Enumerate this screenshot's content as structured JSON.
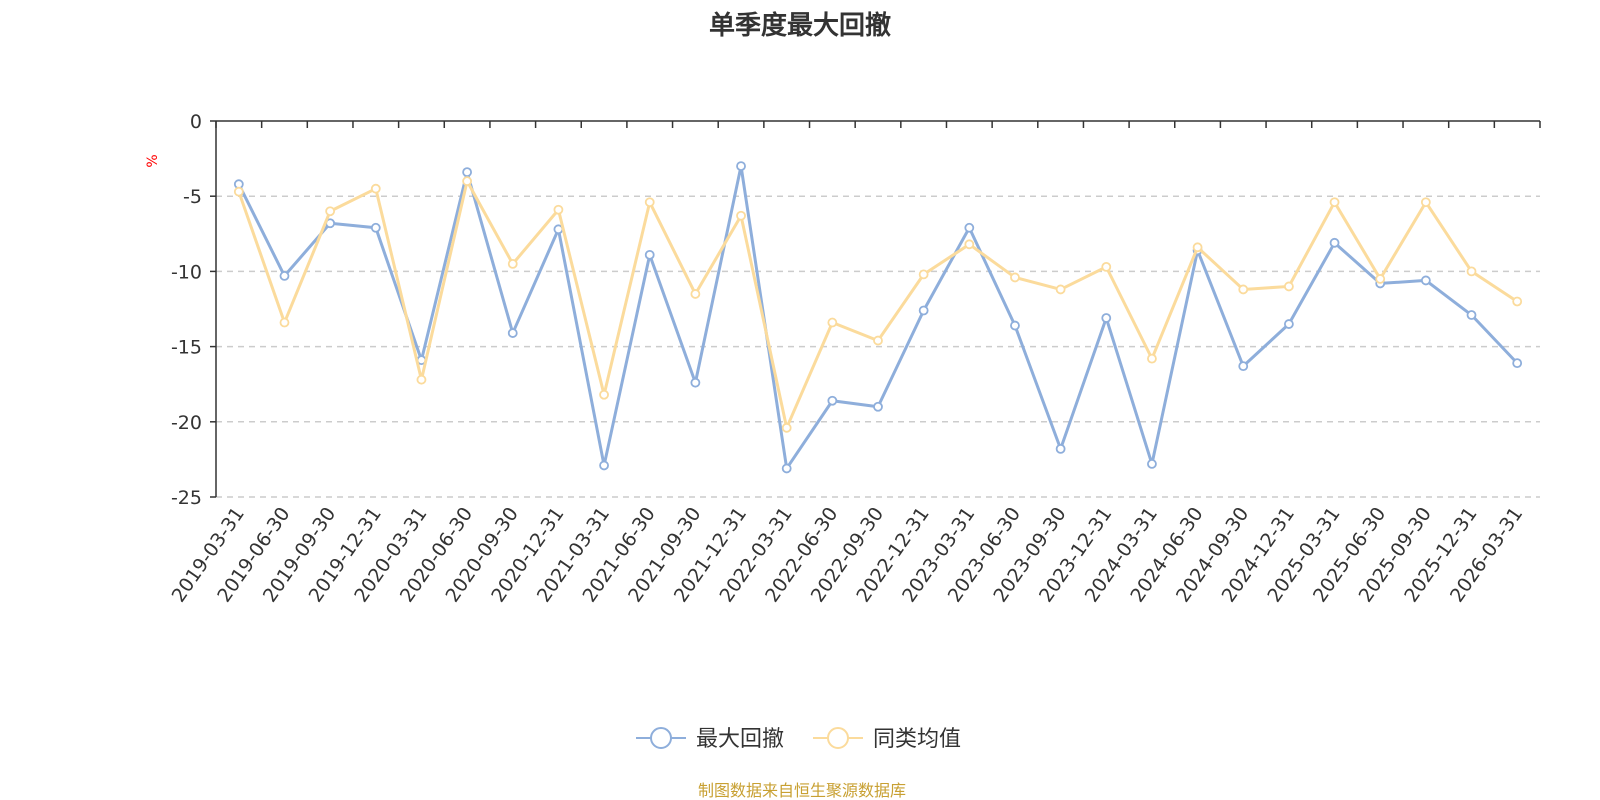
{
  "chart_data": {
    "type": "line",
    "title": "单季度最大回撤",
    "ylabel": "%",
    "ylim": [
      -25,
      0
    ],
    "yticks": [
      "0",
      "-5",
      "-10",
      "-15",
      "-20",
      "-25"
    ],
    "ytick_values": [
      0,
      -5,
      -10,
      -15,
      -20,
      -25
    ],
    "grid": true,
    "legend_position": "bottom-center",
    "categories": [
      "2019-03-31",
      "2019-06-30",
      "2019-09-30",
      "2019-12-31",
      "2020-03-31",
      "2020-06-30",
      "2020-09-30",
      "2020-12-31",
      "2021-03-31",
      "2021-06-30",
      "2021-09-30",
      "2021-12-31",
      "2022-03-31",
      "2022-06-30",
      "2022-09-30",
      "2022-12-31",
      "2023-03-31",
      "2023-06-30",
      "2023-09-30",
      "2023-12-31",
      "2024-03-31",
      "2024-06-30",
      "2024-09-30",
      "2024-12-31",
      "2025-03-31",
      "2025-06-30",
      "2025-09-30",
      "2025-12-31",
      "2026-03-31"
    ],
    "series": [
      {
        "name": "最大回撤",
        "color": "#8eaedb",
        "values": [
          -4.2,
          -10.3,
          -6.8,
          -7.1,
          -15.9,
          -3.4,
          -14.1,
          -7.2,
          -22.9,
          -8.9,
          -17.4,
          -3.0,
          -23.1,
          -18.6,
          -19.0,
          -12.6,
          -7.1,
          -13.6,
          -21.8,
          -13.1,
          -22.8,
          -8.6,
          -16.3,
          -13.5,
          -8.1,
          -10.8,
          -10.6,
          -12.9,
          -16.1
        ]
      },
      {
        "name": "同类均值",
        "color": "#fbdb9c",
        "values": [
          -4.7,
          -13.4,
          -6.0,
          -4.5,
          -17.2,
          -4.0,
          -9.5,
          -5.9,
          -18.2,
          -5.4,
          -11.5,
          -6.3,
          -20.4,
          -13.4,
          -14.6,
          -10.2,
          -8.2,
          -10.4,
          -11.2,
          -9.7,
          -15.8,
          -8.4,
          -11.2,
          -11.0,
          -5.4,
          -10.5,
          -5.4,
          -10.0,
          -12.0
        ]
      }
    ],
    "source": "制图数据来自恒生聚源数据库",
    "colors": {
      "axis": "#333333",
      "grid": "#cccccc",
      "text": "#333333",
      "unit": "#ff0000",
      "source": "#c8a032"
    }
  }
}
